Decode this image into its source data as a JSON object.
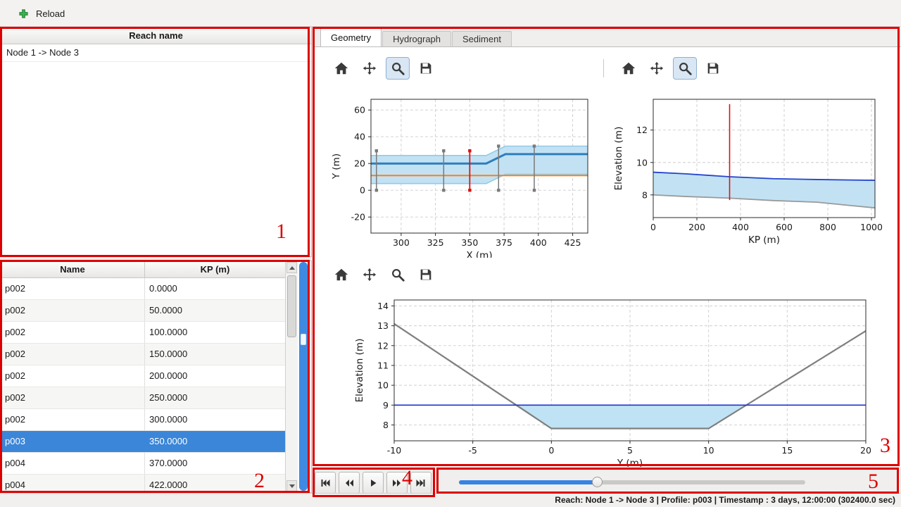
{
  "window": {
    "toolbar": {
      "reload_label": "Reload"
    }
  },
  "reach_panel": {
    "header": "Reach name",
    "items": [
      "Node 1 -> Node 3"
    ]
  },
  "profile_table": {
    "columns": [
      "Name",
      "KP (m)"
    ],
    "rows": [
      {
        "name": "p002",
        "kp": "0.0000",
        "selected": false
      },
      {
        "name": "p002",
        "kp": "50.0000",
        "selected": false
      },
      {
        "name": "p002",
        "kp": "100.0000",
        "selected": false
      },
      {
        "name": "p002",
        "kp": "150.0000",
        "selected": false
      },
      {
        "name": "p002",
        "kp": "200.0000",
        "selected": false
      },
      {
        "name": "p002",
        "kp": "250.0000",
        "selected": false
      },
      {
        "name": "p002",
        "kp": "300.0000",
        "selected": false
      },
      {
        "name": "p003",
        "kp": "350.0000",
        "selected": true
      },
      {
        "name": "p004",
        "kp": "370.0000",
        "selected": false
      },
      {
        "name": "p004",
        "kp": "422.0000",
        "selected": false
      }
    ]
  },
  "tabs": [
    {
      "label": "Geometry",
      "active": true
    },
    {
      "label": "Hydrograph",
      "active": false
    },
    {
      "label": "Sediment",
      "active": false
    }
  ],
  "icons": {
    "reload": "green-plus",
    "plot_toolbar": [
      "home",
      "pan",
      "zoom",
      "save"
    ],
    "playback": [
      "skip-to-start",
      "rewind",
      "play",
      "fast-forward",
      "skip-to-end"
    ]
  },
  "playback": {
    "slider_percent": 40
  },
  "status_bar": {
    "text": "Reach: Node 1 -> Node 3 | Profile: p003 | Timestamp : 3 days, 12:00:00 (302400.0 sec)"
  },
  "annotations": {
    "color": "#dd0000",
    "labels": [
      "1",
      "2",
      "3",
      "4",
      "5"
    ]
  },
  "chart_data": [
    {
      "type": "line",
      "title": "",
      "xlabel": "X (m)",
      "ylabel": "Y (m)",
      "xlim": [
        278,
        436
      ],
      "ylim": [
        -32,
        68
      ],
      "xticks": [
        300,
        325,
        350,
        375,
        400,
        425
      ],
      "yticks": [
        -20,
        0,
        20,
        40,
        60
      ],
      "grid": true,
      "series": [
        {
          "name": "channel-banks",
          "type": "band",
          "x": [
            278,
            362,
            376,
            436
          ],
          "top": [
            26,
            26,
            33,
            33
          ],
          "bottom": [
            5,
            5,
            12,
            12
          ],
          "fill": "#c2e2f4",
          "edge": "#8fcbe9"
        },
        {
          "name": "bank-line",
          "type": "line",
          "x": [
            278,
            362,
            376,
            436
          ],
          "y": [
            20,
            20,
            27,
            27
          ],
          "color": "#2e7ebd",
          "width": 3
        },
        {
          "name": "centerline",
          "type": "line",
          "x": [
            278,
            436
          ],
          "y": [
            11,
            11
          ],
          "color": "#ff7f0e",
          "width": 2
        },
        {
          "name": "cross-section-282",
          "type": "vline",
          "x": 282,
          "y0": 0,
          "y1": 29.5,
          "color": "#7a7a7a",
          "width": 1.5,
          "markers": true
        },
        {
          "name": "cross-section-331",
          "type": "vline",
          "x": 331,
          "y0": 0,
          "y1": 29.5,
          "color": "#7a7a7a",
          "width": 1.5,
          "markers": true
        },
        {
          "name": "selected-cross-section-350",
          "type": "vline",
          "x": 350,
          "y0": 0,
          "y1": 29.5,
          "color": "#dd1111",
          "width": 1.8,
          "markers": true
        },
        {
          "name": "cross-section-371",
          "type": "vline",
          "x": 371,
          "y0": 0,
          "y1": 33,
          "color": "#7a7a7a",
          "width": 1.5,
          "markers": true
        },
        {
          "name": "cross-section-397",
          "type": "vline",
          "x": 397,
          "y0": 0,
          "y1": 33,
          "color": "#7a7a7a",
          "width": 1.5,
          "markers": true
        }
      ]
    },
    {
      "type": "line",
      "title": "",
      "xlabel": "KP (m)",
      "ylabel": "Elevation (m)",
      "xlim": [
        0,
        1016
      ],
      "ylim": [
        6.6,
        13.9
      ],
      "xticks": [
        0,
        200,
        400,
        600,
        800,
        1000
      ],
      "yticks": [
        8,
        10,
        12
      ],
      "grid": true,
      "series": [
        {
          "name": "water-fill",
          "type": "band",
          "x": [
            0,
            150,
            350,
            550,
            750,
            900,
            1016
          ],
          "top": [
            9.4,
            9.3,
            9.12,
            9.0,
            8.95,
            8.92,
            8.9
          ],
          "bottom": [
            8.0,
            7.9,
            7.8,
            7.65,
            7.55,
            7.35,
            7.2
          ],
          "fill": "#c2e2f4"
        },
        {
          "name": "water-surface",
          "type": "line",
          "x": [
            0,
            150,
            350,
            550,
            750,
            900,
            1016
          ],
          "y": [
            9.4,
            9.3,
            9.12,
            9.0,
            8.95,
            8.92,
            8.9
          ],
          "color": "#2244cc",
          "width": 1.8
        },
        {
          "name": "bed-level",
          "type": "line",
          "x": [
            0,
            150,
            350,
            550,
            750,
            900,
            1016
          ],
          "y": [
            8.0,
            7.9,
            7.8,
            7.65,
            7.55,
            7.35,
            7.2
          ],
          "color": "#9a9a9a",
          "width": 1.8
        },
        {
          "name": "selected-profile-marker",
          "type": "vline",
          "x": 350,
          "y0": 7.68,
          "y1": 13.6,
          "color": "#dd1111",
          "width": 1.6,
          "markers": false
        }
      ]
    },
    {
      "type": "line",
      "title": "",
      "xlabel": "Y (m)",
      "ylabel": "Elevation (m)",
      "xlim": [
        -10,
        20
      ],
      "ylim": [
        7.2,
        14.3
      ],
      "xticks": [
        -10,
        -5,
        0,
        5,
        10,
        15,
        20
      ],
      "yticks": [
        8,
        9,
        10,
        11,
        12,
        13,
        14
      ],
      "grid": true,
      "series": [
        {
          "name": "water-area",
          "type": "band",
          "x": [
            -2.26,
            0,
            10,
            12.4
          ],
          "top": [
            9,
            9,
            9,
            9
          ],
          "bottom": [
            9,
            7.82,
            7.82,
            9
          ],
          "fill": "#bfe3f5"
        },
        {
          "name": "cross-section-bed",
          "type": "line",
          "x": [
            -10,
            0,
            10,
            20
          ],
          "y": [
            13.1,
            7.82,
            7.82,
            12.74
          ],
          "color": "#7f7f7f",
          "width": 2.2
        },
        {
          "name": "water-level",
          "type": "line",
          "x": [
            -10,
            20
          ],
          "y": [
            9,
            9
          ],
          "color": "#2233cc",
          "width": 1.6
        }
      ]
    }
  ]
}
